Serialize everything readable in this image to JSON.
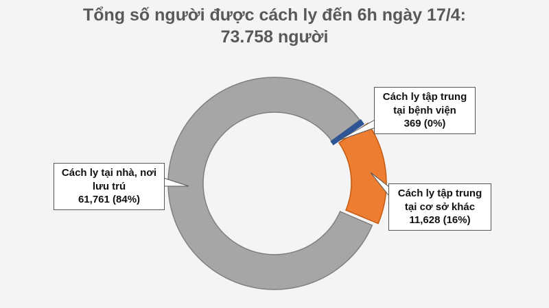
{
  "chart_data": {
    "type": "donut",
    "title": "Tổng số người được cách ly đến 6h ngày 17/4:",
    "subtitle": "73.758 người",
    "categories": [
      "Cách ly tập trung tại bệnh viện",
      "Cách ly tập trung tại cơ sở khác",
      "Cách ly tại nhà, nơi lưu trú"
    ],
    "values": [
      369,
      11628,
      61761
    ],
    "value_labels": [
      "369  (0%)",
      "11,628  (16%)",
      "61,761  (84%)"
    ],
    "colors": [
      "#2f5597",
      "#ed7d31",
      "#a6a6a6"
    ]
  }
}
